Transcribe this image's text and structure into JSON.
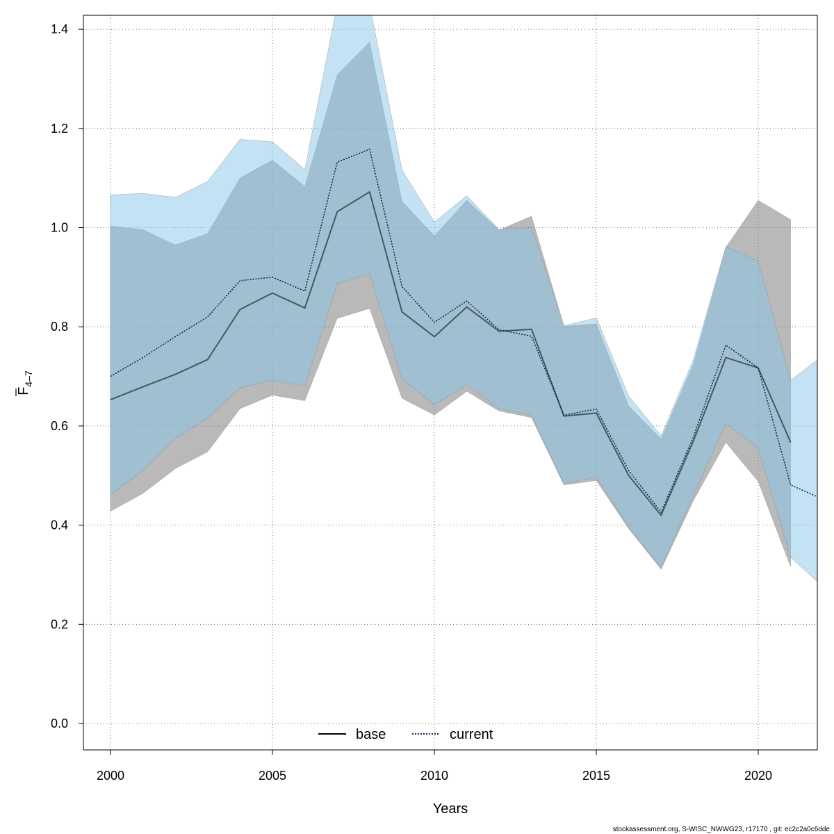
{
  "chart_data": {
    "type": "area",
    "xlabel": "Years",
    "ylabel": {
      "main": "F",
      "subscript": "4–7"
    },
    "xlim": [
      1998.3,
      2022
    ],
    "ylim": [
      -0.05,
      1.43
    ],
    "x_ticks": [
      2000,
      2005,
      2010,
      2015,
      2020
    ],
    "x_tick_labels": [
      "2000",
      "2005",
      "2010",
      "2015",
      "2020"
    ],
    "y_ticks": [
      0.0,
      0.2,
      0.4,
      0.6,
      0.8,
      1.0,
      1.2,
      1.4
    ],
    "y_tick_labels": [
      "0.0",
      "0.2",
      "0.4",
      "0.6",
      "0.8",
      "1.0",
      "1.2",
      "1.4"
    ],
    "grid": true,
    "legend": {
      "placement": "bottom-center",
      "entries": [
        {
          "label": "base",
          "style": "solid"
        },
        {
          "label": "current",
          "style": "dotted"
        }
      ]
    },
    "series": [
      {
        "name": "base",
        "line_color": "#000000",
        "band_color": "#7f7f7f",
        "band_opacity": 0.55,
        "line_style": "solid",
        "x": [
          2000,
          2001,
          2002,
          2003,
          2004,
          2005,
          2006,
          2007,
          2008,
          2009,
          2010,
          2011,
          2012,
          2013,
          2014,
          2015,
          2016,
          2017,
          2018,
          2019,
          2020,
          2021
        ],
        "y": [
          0.653,
          0.679,
          0.704,
          0.734,
          0.835,
          0.868,
          0.838,
          1.032,
          1.072,
          0.83,
          0.78,
          0.84,
          0.791,
          0.795,
          0.62,
          0.626,
          0.5,
          0.42,
          0.57,
          0.738,
          0.717,
          0.567
        ],
        "lower": [
          0.428,
          0.464,
          0.514,
          0.548,
          0.635,
          0.662,
          0.651,
          0.817,
          0.837,
          0.656,
          0.622,
          0.67,
          0.63,
          0.617,
          0.481,
          0.49,
          0.393,
          0.311,
          0.45,
          0.567,
          0.488,
          0.316
        ],
        "upper": [
          1.003,
          0.996,
          0.965,
          0.988,
          1.1,
          1.136,
          1.083,
          1.308,
          1.374,
          1.053,
          0.983,
          1.055,
          0.995,
          1.023,
          0.801,
          0.806,
          0.64,
          0.574,
          0.725,
          0.96,
          1.055,
          1.016
        ]
      },
      {
        "name": "current",
        "line_color": "#0b2a4a",
        "band_color": "#87c5ea",
        "band_opacity": 0.5,
        "line_style": "dotted",
        "x": [
          2000,
          2001,
          2002,
          2003,
          2004,
          2005,
          2006,
          2007,
          2008,
          2009,
          2010,
          2011,
          2012,
          2013,
          2014,
          2015,
          2016,
          2017,
          2018,
          2019,
          2020,
          2021,
          2022
        ],
        "y": [
          0.7,
          0.738,
          0.78,
          0.82,
          0.893,
          0.9,
          0.872,
          1.132,
          1.158,
          0.881,
          0.809,
          0.852,
          0.794,
          0.781,
          0.622,
          0.634,
          0.51,
          0.426,
          0.578,
          0.763,
          0.717,
          0.481,
          0.452
        ],
        "lower": [
          0.462,
          0.51,
          0.575,
          0.616,
          0.677,
          0.692,
          0.68,
          0.887,
          0.907,
          0.695,
          0.643,
          0.683,
          0.635,
          0.622,
          0.484,
          0.497,
          0.397,
          0.315,
          0.46,
          0.605,
          0.555,
          0.335,
          0.276
        ],
        "upper": [
          1.066,
          1.069,
          1.061,
          1.093,
          1.178,
          1.173,
          1.117,
          1.45,
          1.45,
          1.116,
          1.011,
          1.064,
          0.996,
          1.0,
          0.802,
          0.818,
          0.66,
          0.58,
          0.735,
          0.962,
          0.932,
          0.692,
          0.742
        ]
      }
    ]
  },
  "footer": "stockassessment.org, S-WISC_NWWG23, r17170 , git: ec2c2a0c6dde"
}
